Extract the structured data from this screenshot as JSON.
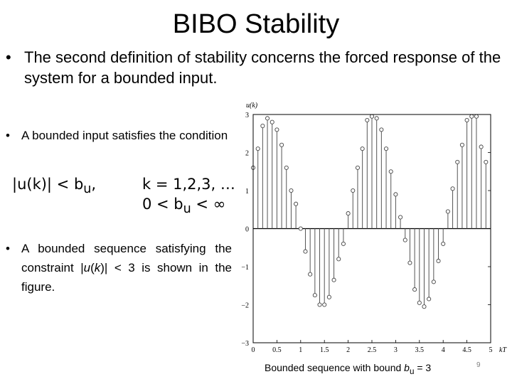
{
  "slide": {
    "title": "BIBO Stability",
    "bullet1": "The second definition of stability concerns the forced response of the system for a bounded input.",
    "bullet2": "A bounded input satisfies the condition",
    "bullet3_pre": "A bounded sequence satisfying the constraint |",
    "bullet3_u": "u",
    "bullet3_mid": "(",
    "bullet3_k": "k",
    "bullet3_post": ")| < 3 is shown in the figure.",
    "eq_bound": "|u(k)| < b",
    "eq_bound_sub": "u",
    "eq_bound_end": ",",
    "eq_k": "k = 1,2,3, …",
    "eq_b": "0 < b",
    "eq_b_sub": "u",
    "eq_b_end": " < ∞",
    "caption_pre": "Bounded sequence with bound ",
    "caption_b": "b",
    "caption_sub": "u",
    "caption_post": " = 3",
    "page_number": "9",
    "bullet_glyph": "•"
  },
  "chart_data": {
    "type": "stem",
    "ylabel": "u(k)",
    "xlabel": "kT",
    "xlim": [
      0,
      5
    ],
    "ylim": [
      -3,
      3
    ],
    "xticks": [
      "0",
      "0.5",
      "1",
      "1.5",
      "2",
      "2.5",
      "3",
      "3.5",
      "4",
      "4.5",
      "5"
    ],
    "yticks": [
      "3",
      "2",
      "1",
      "0",
      "−1",
      "−2",
      "−3"
    ],
    "x": [
      0.0,
      0.1,
      0.2,
      0.3,
      0.4,
      0.5,
      0.6,
      0.7,
      0.8,
      0.9,
      1.0,
      1.1,
      1.2,
      1.3,
      1.4,
      1.5,
      1.6,
      1.7,
      1.8,
      1.9,
      2.0,
      2.1,
      2.2,
      2.3,
      2.4,
      2.5,
      2.6,
      2.7,
      2.8,
      2.9,
      3.0,
      3.1,
      3.2,
      3.3,
      3.4,
      3.5,
      3.6,
      3.7,
      3.8,
      3.9,
      4.0,
      4.1,
      4.2,
      4.3,
      4.4,
      4.5,
      4.6,
      4.7,
      4.8,
      4.9
    ],
    "values": [
      1.6,
      2.1,
      2.7,
      2.9,
      2.8,
      2.6,
      2.2,
      1.6,
      1.0,
      0.65,
      0.0,
      -0.6,
      -1.2,
      -1.75,
      -2.0,
      -2.0,
      -1.8,
      -1.35,
      -0.8,
      -0.4,
      0.4,
      1.0,
      1.6,
      2.1,
      2.85,
      2.95,
      2.9,
      2.6,
      2.1,
      1.5,
      0.9,
      0.3,
      -0.3,
      -0.9,
      -1.6,
      -1.95,
      -2.05,
      -1.85,
      -1.4,
      -0.85,
      -0.4,
      0.45,
      1.05,
      1.75,
      2.2,
      2.85,
      2.95,
      2.95,
      2.15,
      1.75
    ]
  }
}
